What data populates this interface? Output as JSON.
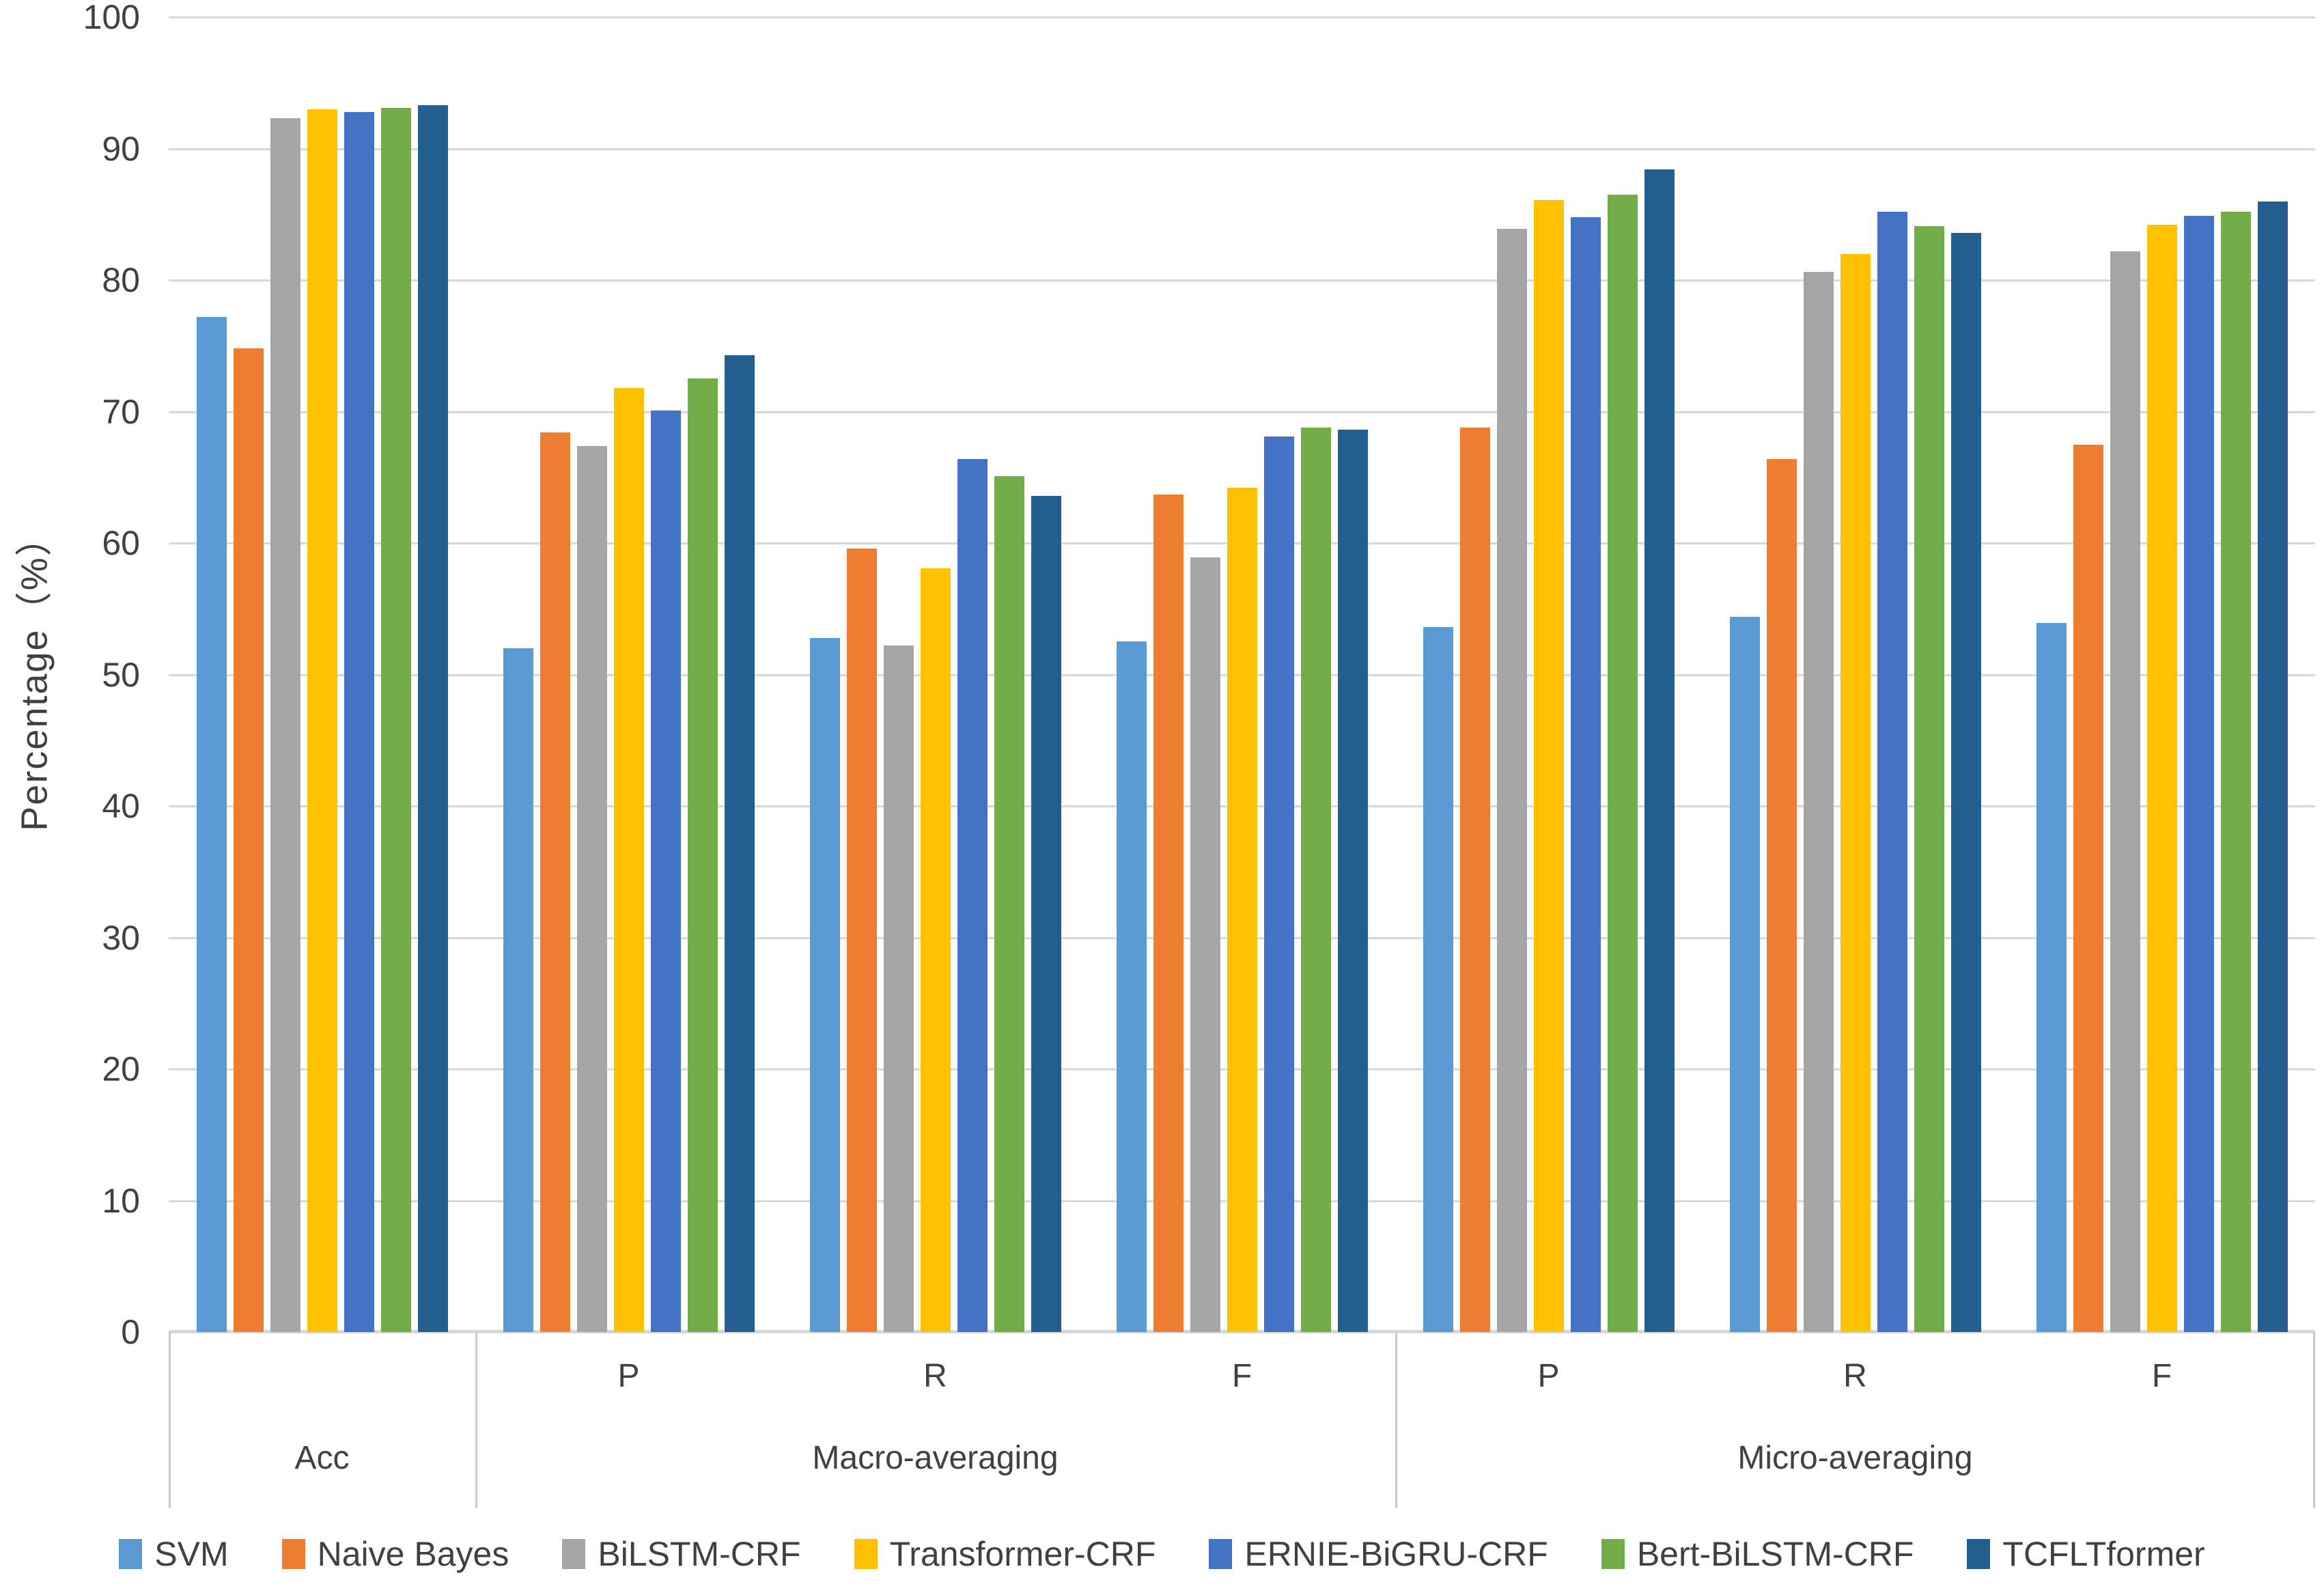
{
  "chart_data": {
    "type": "bar",
    "title": "",
    "ylabel": "Percentage（%）",
    "xlabel": "",
    "ylim": [
      0,
      100
    ],
    "ytick_step": 10,
    "yticks": [
      0,
      10,
      20,
      30,
      40,
      50,
      60,
      70,
      80,
      90,
      100
    ],
    "grid": true,
    "legend_position": "bottom",
    "categories": [
      "Acc",
      "Macro-P",
      "Macro-R",
      "Macro-F",
      "Micro-P",
      "Micro-R",
      "Micro-F"
    ],
    "sections": [
      {
        "label": "Acc",
        "span": 1,
        "sublabels": [
          ""
        ]
      },
      {
        "label": "Macro-averaging",
        "span": 3,
        "sublabels": [
          "P",
          "R",
          "F"
        ]
      },
      {
        "label": "Micro-averaging",
        "span": 3,
        "sublabels": [
          "P",
          "R",
          "F"
        ]
      }
    ],
    "series": [
      {
        "name": "SVM",
        "color": "#5B9BD5",
        "values": [
          77.2,
          52.0,
          52.8,
          52.5,
          53.6,
          54.4,
          53.9
        ]
      },
      {
        "name": "Naive Bayes",
        "color": "#ED7D31",
        "values": [
          74.8,
          68.4,
          59.6,
          63.7,
          68.8,
          66.4,
          67.5
        ]
      },
      {
        "name": "BiLSTM-CRF",
        "color": "#A5A5A5",
        "values": [
          92.3,
          67.4,
          52.2,
          58.9,
          83.9,
          80.6,
          82.2
        ]
      },
      {
        "name": "Transformer-CRF",
        "color": "#FFC000",
        "values": [
          93.0,
          71.8,
          58.1,
          64.2,
          86.1,
          82.0,
          84.2
        ]
      },
      {
        "name": "ERNIE-BiGRU-CRF",
        "color": "#4472C4",
        "values": [
          92.8,
          70.1,
          66.4,
          68.1,
          84.8,
          85.2,
          84.9
        ]
      },
      {
        "name": "Bert-BiLSTM-CRF",
        "color": "#70AD47",
        "values": [
          93.1,
          72.5,
          65.1,
          68.8,
          86.5,
          84.1,
          85.2
        ]
      },
      {
        "name": "TCFLTformer",
        "color": "#255E91",
        "values": [
          93.3,
          74.3,
          63.6,
          68.6,
          88.4,
          83.6,
          86.0
        ]
      }
    ]
  },
  "colors": {
    "gridline": "#D9D9D9",
    "axis_line": "#D6D6D6",
    "band_divider": "#C9C9C9",
    "text": "#404040"
  }
}
